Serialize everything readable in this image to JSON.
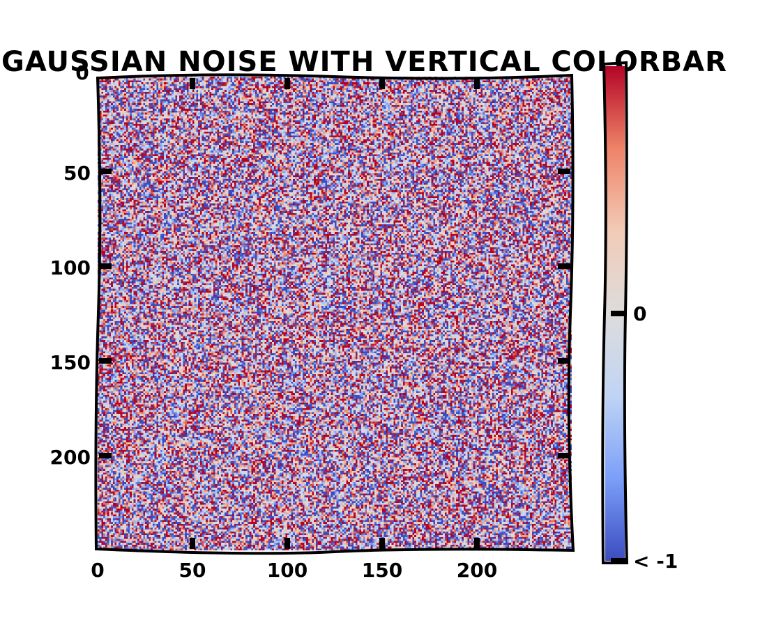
{
  "chart_data": {
    "type": "heatmap",
    "title": "GAUSSIAN NOISE WITH VERTICAL COLORBAR",
    "xlabel": "",
    "ylabel": "",
    "grid_shape": [
      250,
      250
    ],
    "x_range": [
      0,
      250
    ],
    "y_range": [
      0,
      250
    ],
    "y_inverted": true,
    "x_ticks": [
      "0",
      "50",
      "100",
      "150",
      "200"
    ],
    "y_ticks": [
      "0",
      "50",
      "100",
      "150",
      "200"
    ],
    "x_tick_values": [
      0,
      50,
      100,
      150,
      200
    ],
    "y_tick_values": [
      0,
      50,
      100,
      150,
      200
    ],
    "colormap": "coolwarm",
    "colormap_stops": [
      "#3b4cc0",
      "#7b9ff9",
      "#c0d4f5",
      "#dddcdc",
      "#f2cbb7",
      "#ee8468",
      "#b40426"
    ],
    "distribution": "gaussian",
    "clim": [
      -1,
      1
    ],
    "colorbar": {
      "orientation": "vertical",
      "placement": "right",
      "ticks": [
        "0",
        "< -1"
      ],
      "tick_values": [
        0,
        -1
      ],
      "extend": "min"
    }
  }
}
